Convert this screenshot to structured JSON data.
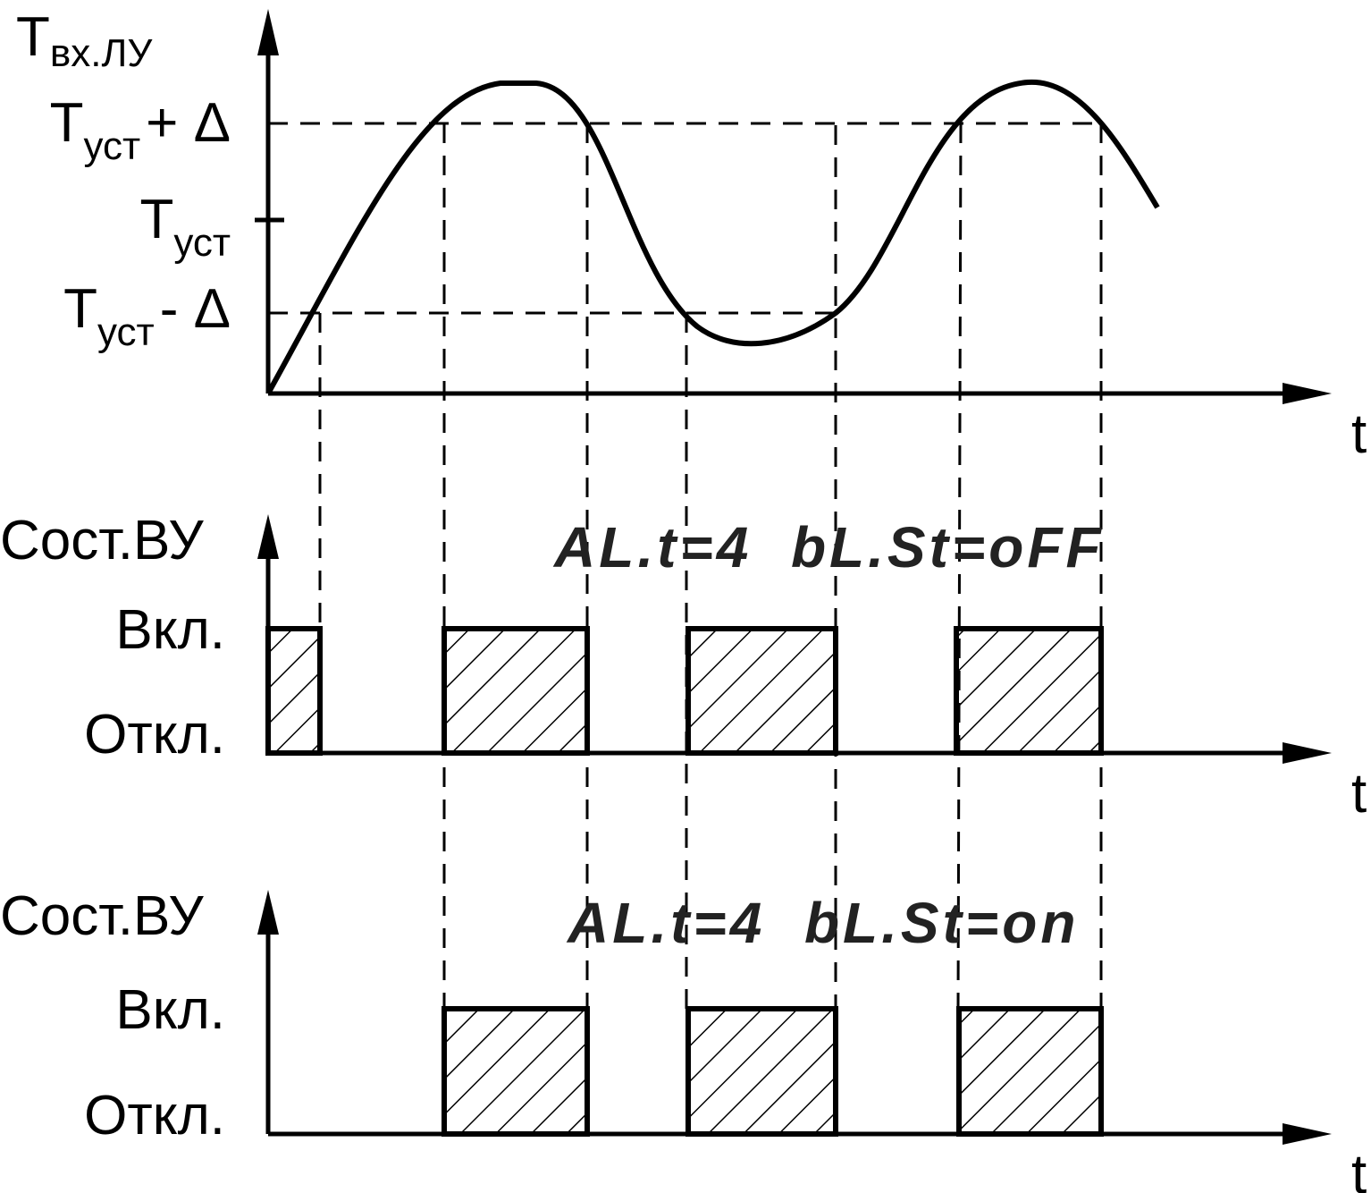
{
  "top": {
    "y_label": {
      "main": "Т",
      "sub": "вх.ЛУ"
    },
    "levels": [
      {
        "main": "Т",
        "sub": "уст",
        "suffix": "+ Δ"
      },
      {
        "main": "Т",
        "sub": "уст"
      },
      {
        "main": "Т",
        "sub": "уст",
        "suffix": "-  Δ"
      }
    ],
    "x_label": "t"
  },
  "panels": [
    {
      "y_label": "Сост.ВУ",
      "on": "Вкл.",
      "off": "Откл.",
      "setting": "AL.t=4  bL.St=oFF",
      "x_label": "t"
    },
    {
      "y_label": "Сост.ВУ",
      "on": "Вкл.",
      "off": "Откл.",
      "setting": "AL.t=4  bL.St=on",
      "x_label": "t"
    }
  ]
}
